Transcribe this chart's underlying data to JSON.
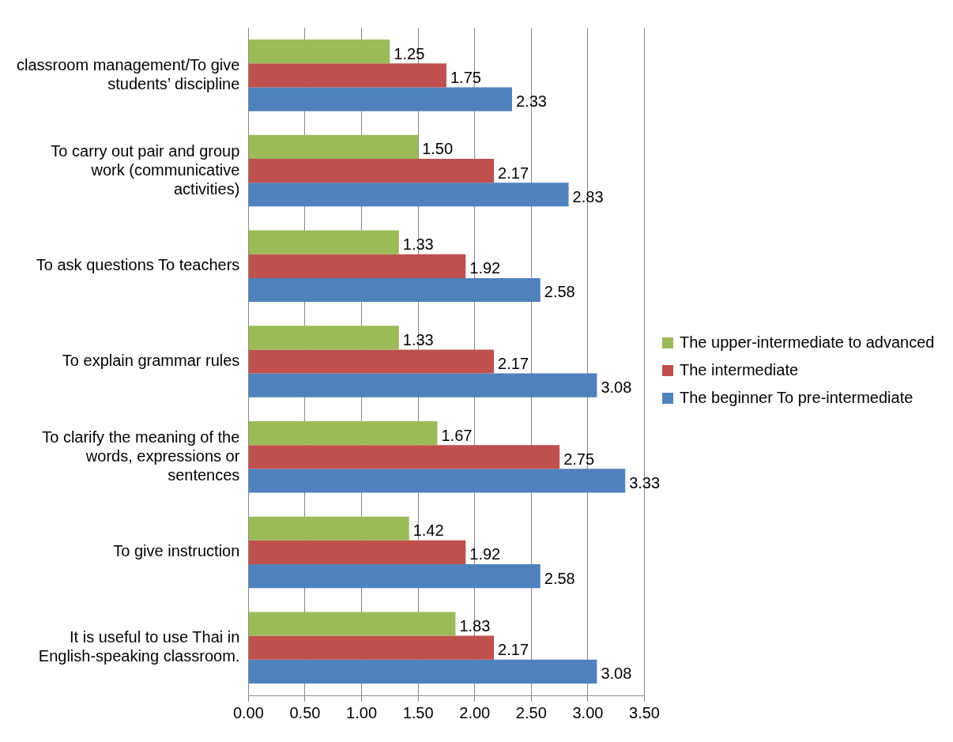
{
  "chart_data": {
    "type": "bar",
    "orientation": "horizontal",
    "categories": [
      "classroom management/To give students’ discipline",
      "To carry out pair and group work (communicative activities)",
      "To ask questions To teachers",
      "To explain grammar rules",
      "To clarify the meaning of the words, expressions or sentences",
      "To give instruction",
      "It is useful to use Thai in English-speaking classroom."
    ],
    "series": [
      {
        "name": "The upper-intermediate to advanced",
        "color": "#9bbb59",
        "values": [
          1.25,
          1.5,
          1.33,
          1.33,
          1.67,
          1.42,
          1.83
        ],
        "value_labels": [
          "1.25",
          "1.50",
          "1.33",
          "1.33",
          "1.67",
          "1.42",
          "1.83"
        ]
      },
      {
        "name": "The intermediate",
        "color": "#c0504d",
        "values": [
          1.75,
          2.17,
          1.92,
          2.17,
          2.75,
          1.92,
          2.17
        ],
        "value_labels": [
          "1.75",
          "2.17",
          "1.92",
          "2.17",
          "2.75",
          "1.92",
          "2.17"
        ]
      },
      {
        "name": "The beginner To pre-intermediate",
        "color": "#4f81bd",
        "values": [
          2.33,
          2.83,
          2.58,
          3.08,
          3.33,
          2.58,
          3.08
        ],
        "value_labels": [
          "2.33",
          "2.83",
          "2.58",
          "3.08",
          "3.33",
          "2.58",
          "3.08"
        ]
      }
    ],
    "xlim": [
      0,
      3.5
    ],
    "xticks": [
      {
        "value": 0,
        "label": "0.00"
      },
      {
        "value": 0.5,
        "label": "0.50"
      },
      {
        "value": 1,
        "label": "1.00"
      },
      {
        "value": 1.5,
        "label": "1.50"
      },
      {
        "value": 2,
        "label": "2.00"
      },
      {
        "value": 2.5,
        "label": "2.50"
      },
      {
        "value": 3,
        "label": "3.00"
      },
      {
        "value": 3.5,
        "label": "3.50"
      }
    ],
    "grid": "x",
    "legend": "right"
  }
}
